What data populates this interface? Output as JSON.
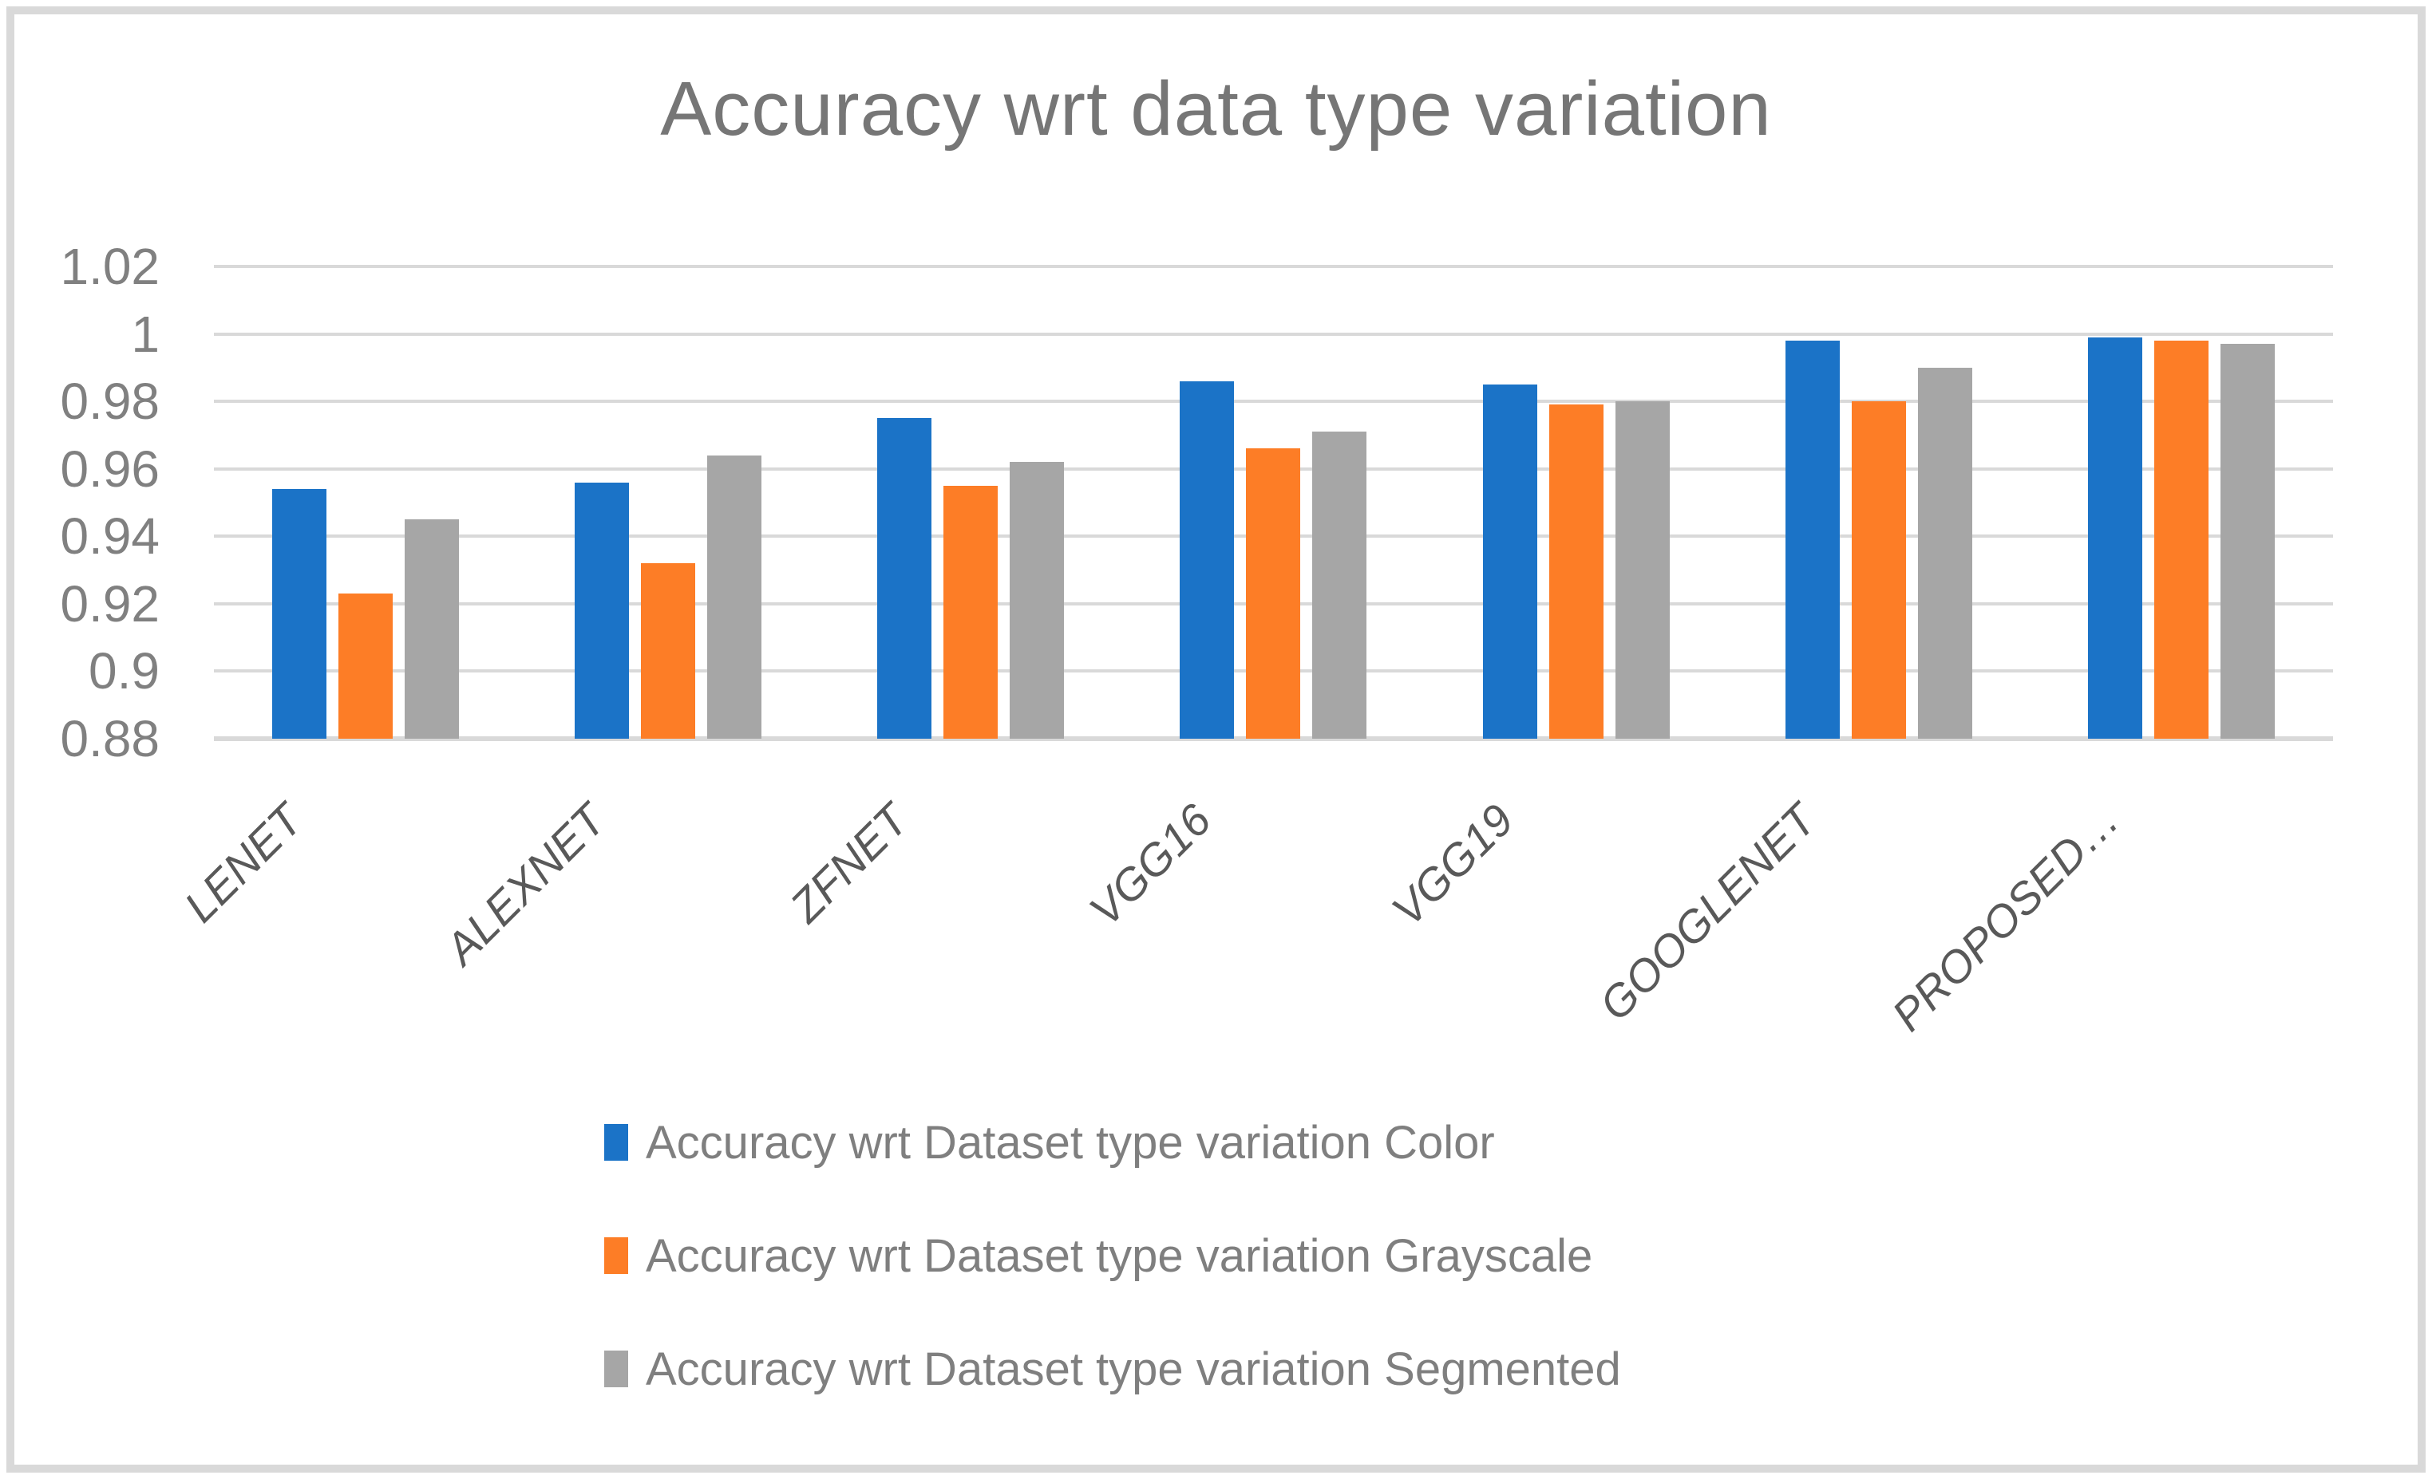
{
  "title": "Accuracy wrt data type variation",
  "chart_data": {
    "type": "bar",
    "title": "Accuracy wrt data type variation",
    "categories": [
      "LENET",
      "ALEXNET",
      "ZFNET",
      "VGG16",
      "VGG19",
      "GOOGLENET",
      "PROPOSED…"
    ],
    "series": [
      {
        "name": "Accuracy wrt Dataset type variation Color",
        "color": "#1b73c7",
        "values": [
          0.954,
          0.956,
          0.975,
          0.986,
          0.985,
          0.998,
          0.999
        ]
      },
      {
        "name": "Accuracy wrt Dataset type variation Grayscale",
        "color": "#fd7d26",
        "values": [
          0.923,
          0.932,
          0.955,
          0.966,
          0.979,
          0.98,
          0.998
        ]
      },
      {
        "name": "Accuracy wrt Dataset type variation Segmented",
        "color": "#a6a6a6",
        "values": [
          0.945,
          0.964,
          0.962,
          0.971,
          0.98,
          0.99,
          0.997
        ]
      }
    ],
    "y_axis": {
      "min": 0.88,
      "max": 1.02,
      "step": 0.02,
      "tick_labels": [
        "0.88",
        "0.9",
        "0.92",
        "0.94",
        "0.96",
        "0.98",
        "1",
        "1.02"
      ]
    },
    "grid": "horizontal",
    "gridline_color": "#d9d9d9",
    "legend_position": "bottom",
    "xlabel": "",
    "ylabel": ""
  }
}
